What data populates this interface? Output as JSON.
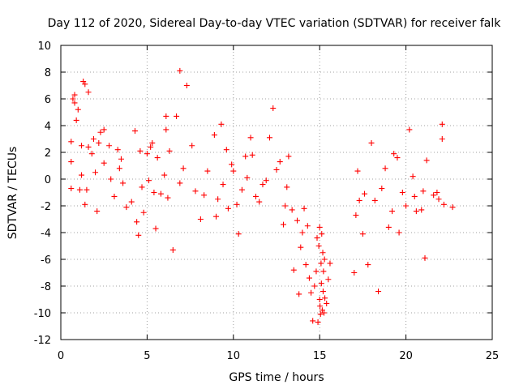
{
  "chart_data": {
    "type": "scatter",
    "title": "Day 112 of 2020, Sidereal Day-to-day VTEC variation (SDTVAR) for receiver falk",
    "xlabel": "GPS time / hours",
    "ylabel": "SDTVAR / TECUs",
    "xlim": [
      0,
      25
    ],
    "ylim": [
      -12,
      10
    ],
    "x_ticks": [
      0,
      5,
      10,
      15,
      20,
      25
    ],
    "y_ticks": [
      -12,
      -10,
      -8,
      -6,
      -4,
      -2,
      0,
      2,
      4,
      6,
      8,
      10
    ],
    "grid": true,
    "marker": "+",
    "color": "#ff0000",
    "series": [
      {
        "name": "SDTVAR",
        "points": [
          [
            0.6,
            2.8
          ],
          [
            0.7,
            6.0
          ],
          [
            0.8,
            6.3
          ],
          [
            0.8,
            5.7
          ],
          [
            0.9,
            4.4
          ],
          [
            1.0,
            5.2
          ],
          [
            0.6,
            1.3
          ],
          [
            0.6,
            -0.7
          ],
          [
            1.1,
            -0.8
          ],
          [
            1.2,
            2.5
          ],
          [
            1.3,
            7.3
          ],
          [
            1.4,
            7.1
          ],
          [
            1.6,
            6.5
          ],
          [
            1.2,
            0.3
          ],
          [
            1.4,
            -1.9
          ],
          [
            1.5,
            -0.8
          ],
          [
            1.6,
            2.4
          ],
          [
            1.8,
            1.9
          ],
          [
            1.9,
            3.0
          ],
          [
            2.0,
            0.5
          ],
          [
            2.1,
            -2.4
          ],
          [
            2.2,
            2.7
          ],
          [
            2.3,
            3.5
          ],
          [
            2.5,
            3.7
          ],
          [
            2.5,
            1.2
          ],
          [
            2.8,
            2.5
          ],
          [
            2.9,
            0.0
          ],
          [
            3.1,
            -1.3
          ],
          [
            3.3,
            2.2
          ],
          [
            3.4,
            0.8
          ],
          [
            3.5,
            1.5
          ],
          [
            3.6,
            -0.3
          ],
          [
            3.8,
            -2.1
          ],
          [
            4.1,
            -1.7
          ],
          [
            4.3,
            3.6
          ],
          [
            4.4,
            -3.2
          ],
          [
            4.5,
            -4.2
          ],
          [
            4.6,
            2.1
          ],
          [
            4.7,
            -0.6
          ],
          [
            4.8,
            -2.5
          ],
          [
            5.0,
            1.9
          ],
          [
            5.1,
            -0.1
          ],
          [
            5.2,
            2.4
          ],
          [
            5.3,
            2.7
          ],
          [
            5.4,
            -1.0
          ],
          [
            5.5,
            -3.7
          ],
          [
            5.6,
            1.6
          ],
          [
            5.8,
            -1.1
          ],
          [
            6.0,
            0.3
          ],
          [
            6.1,
            4.7
          ],
          [
            6.1,
            3.7
          ],
          [
            6.2,
            -1.4
          ],
          [
            6.3,
            2.1
          ],
          [
            6.5,
            -5.3
          ],
          [
            6.7,
            4.7
          ],
          [
            6.9,
            8.1
          ],
          [
            6.9,
            -0.3
          ],
          [
            7.1,
            0.8
          ],
          [
            7.3,
            7.0
          ],
          [
            7.6,
            2.5
          ],
          [
            7.8,
            -0.9
          ],
          [
            8.1,
            -3.0
          ],
          [
            8.3,
            -1.2
          ],
          [
            8.5,
            0.6
          ],
          [
            8.9,
            3.3
          ],
          [
            9.0,
            -2.8
          ],
          [
            9.1,
            -1.5
          ],
          [
            9.3,
            4.1
          ],
          [
            9.4,
            -0.4
          ],
          [
            9.6,
            2.2
          ],
          [
            9.7,
            -2.2
          ],
          [
            9.9,
            1.1
          ],
          [
            10.0,
            0.6
          ],
          [
            10.2,
            -1.9
          ],
          [
            10.3,
            -4.1
          ],
          [
            10.5,
            -0.8
          ],
          [
            10.7,
            1.7
          ],
          [
            10.8,
            0.1
          ],
          [
            11.0,
            3.1
          ],
          [
            11.1,
            1.8
          ],
          [
            11.3,
            -1.3
          ],
          [
            11.5,
            -1.7
          ],
          [
            11.7,
            -0.4
          ],
          [
            11.9,
            -0.1
          ],
          [
            12.1,
            3.1
          ],
          [
            12.3,
            5.3
          ],
          [
            12.5,
            0.7
          ],
          [
            12.7,
            1.3
          ],
          [
            12.9,
            -3.4
          ],
          [
            13.0,
            -2.0
          ],
          [
            13.1,
            -0.6
          ],
          [
            13.2,
            1.7
          ],
          [
            13.4,
            -2.3
          ],
          [
            13.5,
            -6.8
          ],
          [
            13.7,
            -3.1
          ],
          [
            13.8,
            -8.6
          ],
          [
            13.9,
            -5.1
          ],
          [
            14.0,
            -4.0
          ],
          [
            14.1,
            -2.2
          ],
          [
            14.2,
            -6.4
          ],
          [
            14.3,
            -3.5
          ],
          [
            14.4,
            -7.4
          ],
          [
            14.5,
            -8.5
          ],
          [
            14.6,
            -10.6
          ],
          [
            14.7,
            -8.0
          ],
          [
            14.8,
            -6.9
          ],
          [
            14.85,
            -4.4
          ],
          [
            14.9,
            -10.7
          ],
          [
            14.95,
            -5.0
          ],
          [
            15.0,
            -3.6
          ],
          [
            15.0,
            -9.0
          ],
          [
            15.02,
            -9.5
          ],
          [
            15.05,
            -10.1
          ],
          [
            15.08,
            -6.3
          ],
          [
            15.1,
            -7.8
          ],
          [
            15.12,
            -4.1
          ],
          [
            15.15,
            -9.8
          ],
          [
            15.18,
            -5.5
          ],
          [
            15.2,
            -8.4
          ],
          [
            15.22,
            -6.9
          ],
          [
            15.25,
            -10.0
          ],
          [
            15.28,
            -6.0
          ],
          [
            15.3,
            -8.9
          ],
          [
            15.4,
            -9.3
          ],
          [
            15.5,
            -7.5
          ],
          [
            15.6,
            -6.3
          ],
          [
            17.0,
            -7.0
          ],
          [
            17.1,
            -2.7
          ],
          [
            17.2,
            0.6
          ],
          [
            17.3,
            -1.6
          ],
          [
            17.5,
            -4.1
          ],
          [
            17.6,
            -1.1
          ],
          [
            17.8,
            -6.4
          ],
          [
            18.0,
            2.7
          ],
          [
            18.2,
            -1.6
          ],
          [
            18.4,
            -8.4
          ],
          [
            18.6,
            -0.7
          ],
          [
            18.8,
            0.8
          ],
          [
            19.0,
            -3.6
          ],
          [
            19.2,
            -2.4
          ],
          [
            19.3,
            1.9
          ],
          [
            19.5,
            1.6
          ],
          [
            19.6,
            -4.0
          ],
          [
            19.8,
            -1.0
          ],
          [
            20.0,
            -2.0
          ],
          [
            20.2,
            3.7
          ],
          [
            20.4,
            0.2
          ],
          [
            20.5,
            -1.3
          ],
          [
            20.6,
            -2.4
          ],
          [
            20.9,
            -2.3
          ],
          [
            21.1,
            -5.9
          ],
          [
            21.2,
            1.4
          ],
          [
            21.6,
            -1.2
          ],
          [
            21.8,
            -1.0
          ],
          [
            21.9,
            -1.5
          ],
          [
            22.1,
            4.1
          ],
          [
            22.1,
            3.0
          ],
          [
            22.2,
            -1.9
          ],
          [
            22.7,
            -2.1
          ],
          [
            21.0,
            -0.9
          ]
        ]
      }
    ]
  }
}
